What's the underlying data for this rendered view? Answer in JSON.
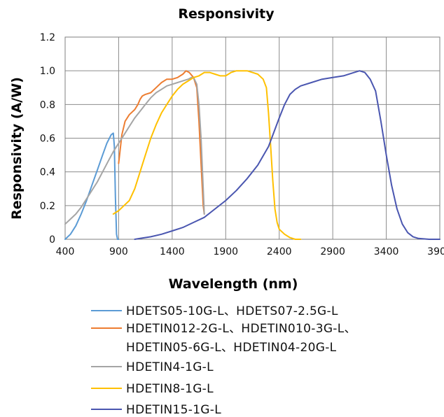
{
  "chart_data": {
    "type": "line",
    "title": "Responsivity",
    "xlabel": "Wavelength (nm)",
    "ylabel": "Responsivity (A/W)",
    "xlim": [
      400,
      3900
    ],
    "ylim": [
      0,
      1.2
    ],
    "x_ticks": [
      400,
      900,
      1400,
      1900,
      2400,
      2900,
      3400,
      3900
    ],
    "y_ticks": [
      0,
      0.2,
      0.4,
      0.6,
      0.8,
      1.0,
      1.2
    ],
    "y_tick_labels": [
      "0",
      "0.2",
      "0.4",
      "0.6",
      "0.8",
      "1.0",
      "1.2"
    ],
    "grid": true,
    "legend_position": "bottom",
    "series": [
      {
        "name": "HDETS05-10G-L、HDETS07-2.5G-L",
        "color": "#5b9bd5",
        "x": [
          400,
          450,
          500,
          550,
          600,
          650,
          700,
          750,
          790,
          830,
          850,
          860,
          870,
          880,
          890,
          900
        ],
        "y": [
          0.0,
          0.03,
          0.08,
          0.15,
          0.23,
          0.32,
          0.41,
          0.5,
          0.57,
          0.62,
          0.63,
          0.55,
          0.25,
          0.03,
          0.0,
          0.0
        ]
      },
      {
        "name": "HDETIN012-2G-L、HDETIN010-3G-L、",
        "color": "#ed7d31",
        "x": [
          900,
          930,
          960,
          1000,
          1050,
          1080,
          1100,
          1120,
          1150,
          1200,
          1250,
          1300,
          1350,
          1400,
          1450,
          1500,
          1530,
          1560,
          1600,
          1630,
          1650,
          1670,
          1690,
          1700
        ],
        "y": [
          0.45,
          0.62,
          0.7,
          0.74,
          0.77,
          0.8,
          0.83,
          0.85,
          0.86,
          0.87,
          0.9,
          0.93,
          0.95,
          0.95,
          0.96,
          0.98,
          1.0,
          0.99,
          0.96,
          0.9,
          0.7,
          0.45,
          0.2,
          0.15
        ]
      },
      {
        "name": "HDETIN4-1G-L",
        "color": "#a5a5a5",
        "x": [
          400,
          450,
          500,
          550,
          600,
          650,
          700,
          750,
          800,
          850,
          900,
          950,
          1000,
          1050,
          1100,
          1150,
          1200,
          1250,
          1300,
          1350,
          1400,
          1450,
          1500,
          1550,
          1580,
          1600,
          1630,
          1650,
          1670,
          1690,
          1700
        ],
        "y": [
          0.09,
          0.12,
          0.15,
          0.19,
          0.24,
          0.29,
          0.34,
          0.4,
          0.46,
          0.52,
          0.57,
          0.62,
          0.67,
          0.72,
          0.76,
          0.8,
          0.84,
          0.87,
          0.89,
          0.91,
          0.92,
          0.93,
          0.94,
          0.95,
          0.96,
          0.96,
          0.92,
          0.8,
          0.6,
          0.3,
          0.15
        ]
      },
      {
        "name": "HDETIN8-1G-L",
        "color": "#ffc000",
        "x": [
          850,
          900,
          950,
          1000,
          1050,
          1100,
          1150,
          1200,
          1250,
          1300,
          1350,
          1400,
          1450,
          1500,
          1550,
          1600,
          1650,
          1700,
          1750,
          1800,
          1850,
          1900,
          1950,
          2000,
          2050,
          2100,
          2150,
          2200,
          2250,
          2280,
          2300,
          2320,
          2340,
          2360,
          2380,
          2400,
          2450,
          2500,
          2550,
          2600
        ],
        "y": [
          0.15,
          0.17,
          0.2,
          0.23,
          0.3,
          0.4,
          0.5,
          0.6,
          0.68,
          0.75,
          0.8,
          0.85,
          0.89,
          0.92,
          0.94,
          0.96,
          0.97,
          0.99,
          0.99,
          0.98,
          0.97,
          0.97,
          0.99,
          1.0,
          1.0,
          1.0,
          0.99,
          0.98,
          0.95,
          0.9,
          0.75,
          0.55,
          0.35,
          0.18,
          0.1,
          0.06,
          0.03,
          0.01,
          0.0,
          0.0
        ]
      },
      {
        "name": "HDETIN15-1G-L",
        "color": "#4a56b0",
        "x": [
          1050,
          1100,
          1200,
          1300,
          1400,
          1500,
          1600,
          1700,
          1800,
          1900,
          2000,
          2100,
          2200,
          2300,
          2400,
          2450,
          2500,
          2550,
          2600,
          2700,
          2800,
          2900,
          3000,
          3100,
          3150,
          3200,
          3250,
          3300,
          3350,
          3400,
          3450,
          3500,
          3550,
          3600,
          3650,
          3700,
          3800,
          3900
        ],
        "y": [
          0.0,
          0.005,
          0.015,
          0.03,
          0.05,
          0.07,
          0.1,
          0.13,
          0.18,
          0.23,
          0.29,
          0.36,
          0.44,
          0.55,
          0.72,
          0.8,
          0.86,
          0.89,
          0.91,
          0.93,
          0.95,
          0.96,
          0.97,
          0.99,
          1.0,
          0.99,
          0.95,
          0.88,
          0.7,
          0.5,
          0.32,
          0.18,
          0.09,
          0.04,
          0.015,
          0.005,
          0.0,
          0.0
        ]
      }
    ],
    "legend_entries": [
      {
        "label": "HDETS05-10G-L、HDETS07-2.5G-L",
        "color": "#5b9bd5"
      },
      {
        "label": "HDETIN012-2G-L、HDETIN010-3G-L、",
        "color": "#ed7d31"
      },
      {
        "label": "HDETIN05-6G-L、HDETIN04-20G-L",
        "color": ""
      },
      {
        "label": "HDETIN4-1G-L",
        "color": "#a5a5a5"
      },
      {
        "label": "HDETIN8-1G-L",
        "color": "#ffc000"
      },
      {
        "label": "HDETIN15-1G-L",
        "color": "#4a56b0"
      }
    ]
  }
}
